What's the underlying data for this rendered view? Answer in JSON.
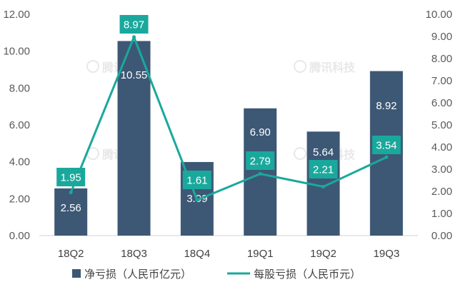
{
  "chart_data": {
    "type": "bar",
    "categories": [
      "18Q2",
      "18Q3",
      "18Q4",
      "19Q1",
      "19Q2",
      "19Q3"
    ],
    "series": [
      {
        "name": "净亏损（人民币亿元）",
        "kind": "bar",
        "axis": "left",
        "color": "#3d5875",
        "values": [
          2.56,
          10.55,
          3.99,
          6.9,
          5.64,
          8.92
        ],
        "labels": [
          "2.56",
          "10.55",
          "3.99",
          "6.90",
          "5.64",
          "8.92"
        ]
      },
      {
        "name": "每股亏损（人民币元）",
        "kind": "line",
        "axis": "right",
        "color": "#1aa89c",
        "values": [
          1.95,
          8.97,
          1.61,
          2.79,
          2.21,
          3.54
        ],
        "labels": [
          "1.95",
          "8.97",
          "1.61",
          "2.79",
          "2.21",
          "3.54"
        ]
      }
    ],
    "y_left": {
      "lim": [
        0,
        12
      ],
      "ticks": [
        "0.00",
        "2.00",
        "4.00",
        "6.00",
        "8.00",
        "10.00",
        "12.00"
      ]
    },
    "y_right": {
      "lim": [
        0,
        10
      ],
      "ticks": [
        "0.00",
        "1.00",
        "2.00",
        "3.00",
        "4.00",
        "5.00",
        "6.00",
        "7.00",
        "8.00",
        "9.00",
        "10.00"
      ]
    },
    "watermark": "腾讯科技",
    "legend_position": "bottom",
    "grid": false
  }
}
